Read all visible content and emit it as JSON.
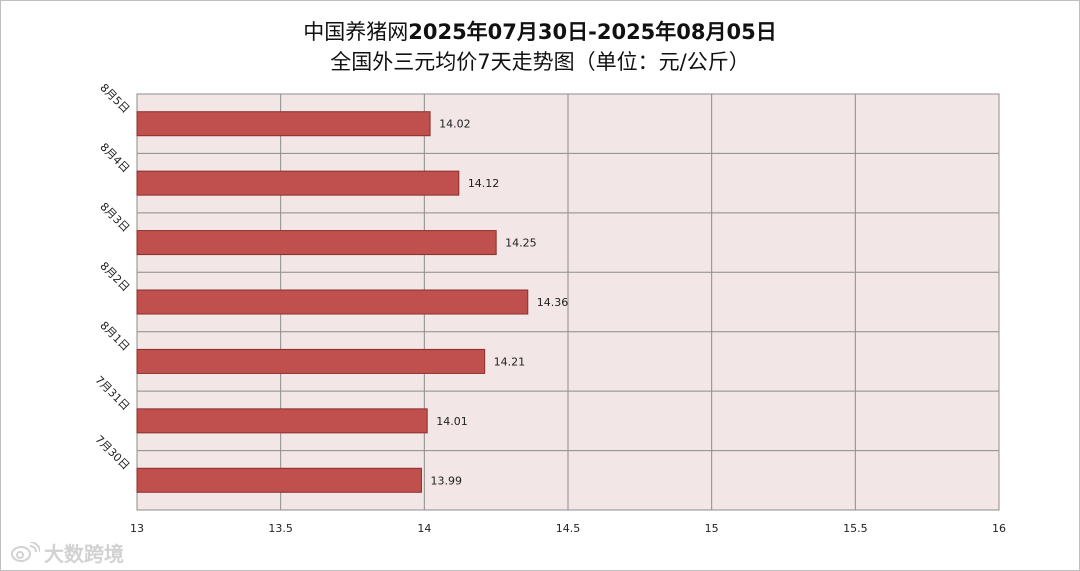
{
  "title": {
    "line1_prefix": "中国养猪网",
    "line1_range": "2025年07月30日-2025年08月05日",
    "line2": "全国外三元均价7天走势图（单位：元/公斤）"
  },
  "watermark": {
    "text": "大数跨境",
    "icon": "weibo-eye-icon"
  },
  "colors": {
    "bar_fill": "#c0504d",
    "bar_stroke": "#8b2f2c",
    "plot_bg": "#f2e6e6",
    "grid": "#8c8c8c"
  },
  "chart_data": {
    "type": "bar",
    "orientation": "horizontal",
    "categories": [
      "8月5日",
      "8月4日",
      "8月3日",
      "8月2日",
      "8月1日",
      "7月31日",
      "7月30日"
    ],
    "values": [
      14.02,
      14.12,
      14.25,
      14.36,
      14.21,
      14.01,
      13.99
    ],
    "value_labels": [
      "14.02",
      "14.12",
      "14.25",
      "14.36",
      "14.21",
      "14.01",
      "13.99"
    ],
    "xlim": [
      13,
      16
    ],
    "x_ticks": [
      "13",
      "13.5",
      "14",
      "14.5",
      "15",
      "15.5",
      "16"
    ],
    "grid": true,
    "legend": "none",
    "title": "中国养猪网2025年07月30日-2025年08月05日 全国外三元均价7天走势图（单位：元/公斤）"
  }
}
